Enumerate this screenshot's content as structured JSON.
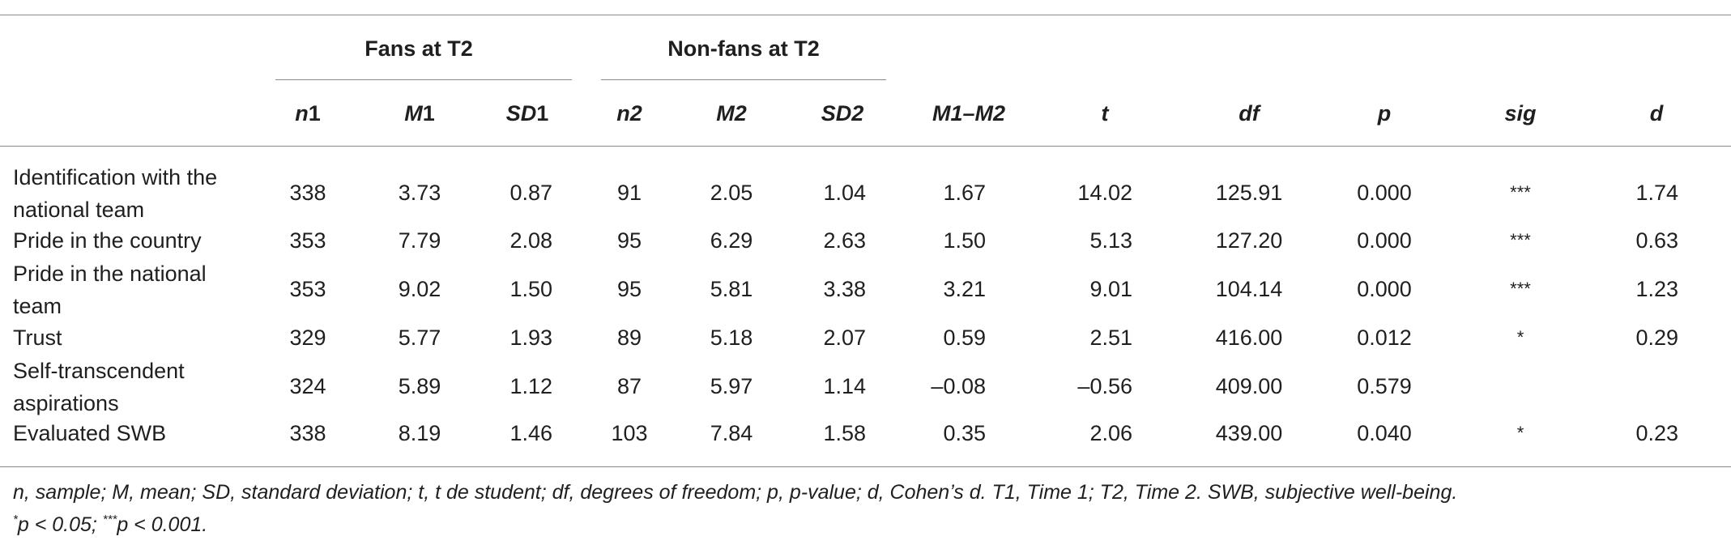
{
  "table": {
    "group_headers": {
      "fans": "Fans at T2",
      "nonfans": "Non-fans at T2"
    },
    "columns": {
      "n1_letter": "n",
      "n1_digit": "1",
      "m1_letter": "M",
      "m1_digit": "1",
      "sd1_letter": "SD",
      "sd1_digit": "1",
      "n2": "n2",
      "m2": "M2",
      "sd2": "SD2",
      "m1m2": "M1–M2",
      "t": "t",
      "df": "df",
      "p": "p",
      "sig": "sig",
      "d": "d"
    },
    "rows": [
      {
        "label_line1": "Identification with the",
        "label_line2": "national team",
        "n1": "338",
        "m1": "3.73",
        "sd1": "0.87",
        "n2": "91",
        "m2": "2.05",
        "sd2": "1.04",
        "diff": "1.67",
        "t": "14.02",
        "df": "125.91",
        "p": "0.000",
        "sig": "***",
        "d": "1.74"
      },
      {
        "label_line1": "Pride in the country",
        "label_line2": "",
        "n1": "353",
        "m1": "7.79",
        "sd1": "2.08",
        "n2": "95",
        "m2": "6.29",
        "sd2": "2.63",
        "diff": "1.50",
        "t": "5.13",
        "df": "127.20",
        "p": "0.000",
        "sig": "***",
        "d": "0.63"
      },
      {
        "label_line1": "Pride in the national",
        "label_line2": "team",
        "n1": "353",
        "m1": "9.02",
        "sd1": "1.50",
        "n2": "95",
        "m2": "5.81",
        "sd2": "3.38",
        "diff": "3.21",
        "t": "9.01",
        "df": "104.14",
        "p": "0.000",
        "sig": "***",
        "d": "1.23"
      },
      {
        "label_line1": "Trust",
        "label_line2": "",
        "n1": "329",
        "m1": "5.77",
        "sd1": "1.93",
        "n2": "89",
        "m2": "5.18",
        "sd2": "2.07",
        "diff": "0.59",
        "t": "2.51",
        "df": "416.00",
        "p": "0.012",
        "sig": "*",
        "d": "0.29"
      },
      {
        "label_line1": "Self-transcendent",
        "label_line2": "aspirations",
        "n1": "324",
        "m1": "5.89",
        "sd1": "1.12",
        "n2": "87",
        "m2": "5.97",
        "sd2": "1.14",
        "diff": "–0.08",
        "t": "–0.56",
        "df": "409.00",
        "p": "0.579",
        "sig": "",
        "d": ""
      },
      {
        "label_line1": "Evaluated SWB",
        "label_line2": "",
        "n1": "338",
        "m1": "8.19",
        "sd1": "1.46",
        "n2": "103",
        "m2": "7.84",
        "sd2": "1.58",
        "diff": "0.35",
        "t": "2.06",
        "df": "439.00",
        "p": "0.040",
        "sig": "*",
        "d": "0.23"
      }
    ],
    "footnote": "n, sample; M, mean; SD, standard deviation; t, t de student; df, degrees of freedom; p, p-value; d, Cohen’s d. T1, Time 1; T2, Time 2. SWB, subjective well-being.",
    "sig_note": {
      "star1": "*",
      "part1": "p < 0.05; ",
      "star3": "***",
      "part2": "p < 0.001."
    }
  }
}
